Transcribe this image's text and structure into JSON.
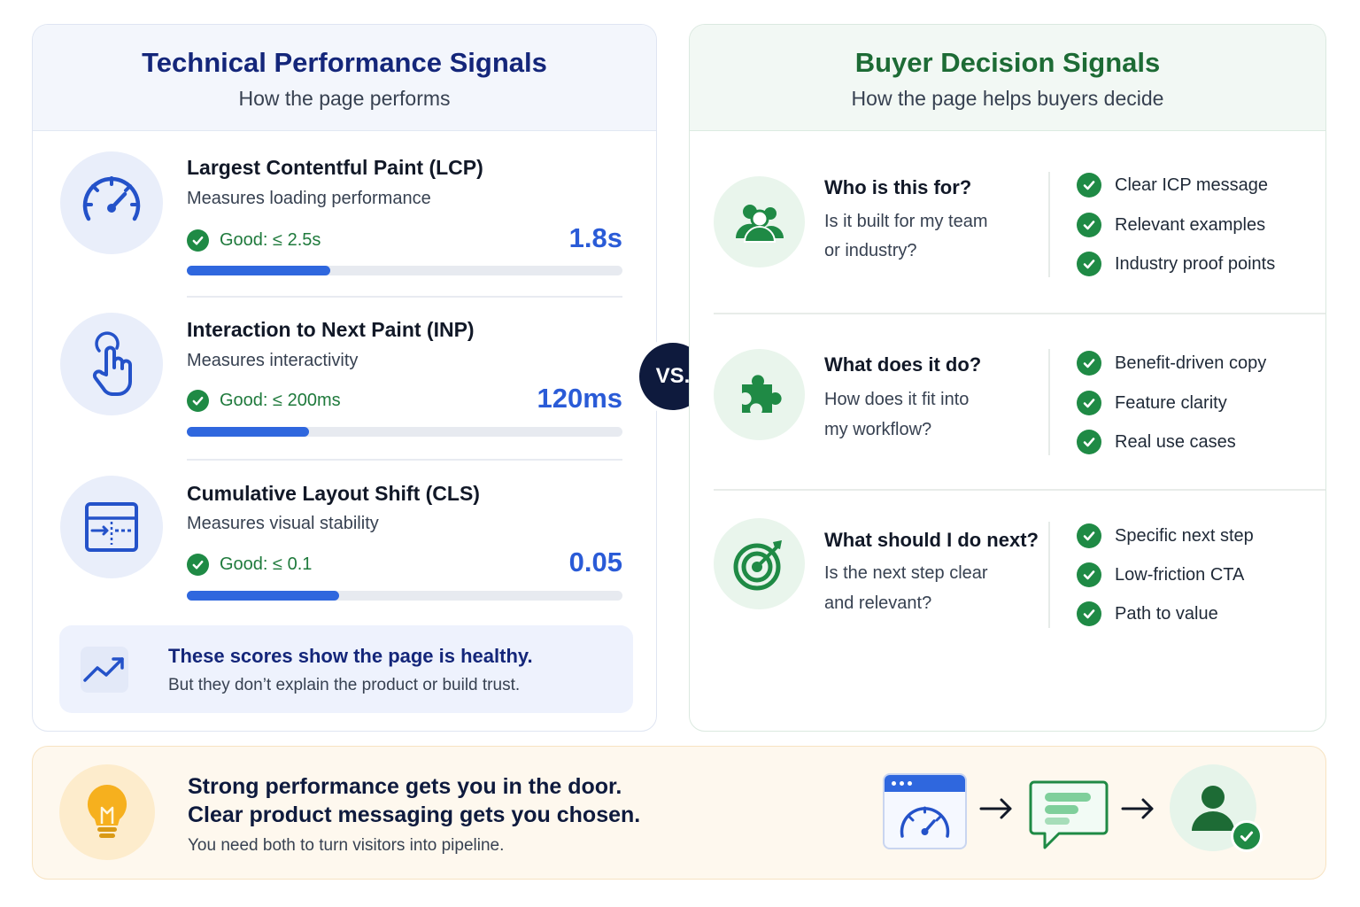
{
  "left_panel": {
    "title": "Technical Performance Signals",
    "subtitle": "How the page performs",
    "metrics": [
      {
        "title": "Largest Contentful Paint (LCP)",
        "description": "Measures loading performance",
        "good": "Good: ≤ 2.5s",
        "value": "1.8s",
        "progress": 0.33,
        "icon": "speedometer-icon"
      },
      {
        "title": "Interaction to Next Paint (INP)",
        "description": "Measures interactivity",
        "good": "Good: ≤ 200ms",
        "value": "120ms",
        "progress": 0.28,
        "icon": "pointer-hand-icon"
      },
      {
        "title": "Cumulative Layout Shift (CLS)",
        "description": "Measures visual stability",
        "good": "Good: ≤ 0.1",
        "value": "0.05",
        "progress": 0.35,
        "icon": "layout-shift-icon"
      }
    ],
    "note": {
      "title": "These scores show the page is healthy.",
      "subtitle": "But they don’t explain the product or build trust.",
      "icon": "trend-up-icon"
    }
  },
  "vs_label": "VS.",
  "right_panel": {
    "title": "Buyer Decision Signals",
    "subtitle": "How the page helps buyers decide",
    "questions": [
      {
        "title": "Who is this for?",
        "lines": [
          "Is it built for my team",
          "or industry?"
        ],
        "icon": "people-icon",
        "checks": [
          "Clear ICP message",
          "Relevant examples",
          "Industry proof points"
        ]
      },
      {
        "title": "What does it do?",
        "lines": [
          "How does it fit into",
          "my workflow?"
        ],
        "icon": "puzzle-icon",
        "checks": [
          "Benefit-driven copy",
          "Feature clarity",
          "Real use cases"
        ]
      },
      {
        "title": "What should I do next?",
        "lines": [
          "Is the next step clear",
          "and relevant?"
        ],
        "icon": "target-icon",
        "checks": [
          "Specific next step",
          "Low-friction CTA",
          "Path to value"
        ]
      }
    ]
  },
  "banner": {
    "line1": "Strong performance gets you in the door.",
    "line2": "Clear product messaging gets you chosen.",
    "line3": "You need both to turn visitors into pipeline.",
    "arrow": "→",
    "icons": [
      "lightbulb-icon",
      "browser-speed-icon",
      "chat-icon",
      "user-check-icon"
    ]
  },
  "colors": {
    "navy": "#14267a",
    "green": "#1d6b35",
    "check_green": "#1f8a45",
    "blue": "#2a5bd7",
    "amber": "#f6b01e"
  }
}
